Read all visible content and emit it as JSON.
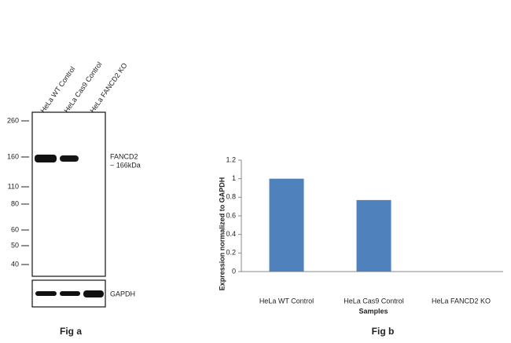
{
  "western_blot": {
    "lanes": [
      "HeLa WT Control",
      "HeLa Cas9 Control",
      "HeLa FANCD2 KO"
    ],
    "markers": [
      "260",
      "160",
      "110",
      "80",
      "60",
      "50",
      "40"
    ],
    "target_label": "FANCD2",
    "target_size": "~ 166kDa",
    "loading_control": "GAPDH",
    "caption": "Fig a"
  },
  "chart_data": {
    "type": "bar",
    "caption": "Fig b",
    "x_label": "Samples",
    "y_label": "Expression  normalized to GAPDH",
    "categories": [
      "HeLa WT Control",
      "HeLa Cas9 Control",
      "HeLa FANCD2 KO"
    ],
    "values": [
      1,
      0.77,
      0
    ],
    "color": "#4f81bd",
    "ylim": [
      0,
      1.2
    ],
    "yticks": [
      0,
      0.2,
      0.4,
      0.6,
      0.8,
      1,
      1.2
    ],
    "grid": false
  }
}
